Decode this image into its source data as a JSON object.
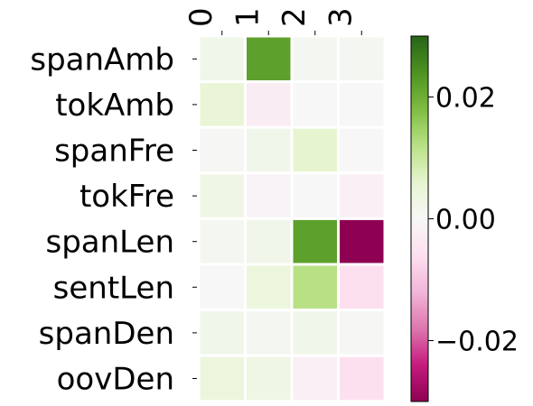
{
  "chart_data": {
    "type": "heatmap",
    "title": "",
    "xlabel": "",
    "ylabel": "",
    "x_categories": [
      "0",
      "1",
      "2",
      "3"
    ],
    "y_categories": [
      "spanAmb",
      "tokAmb",
      "spanFre",
      "tokFre",
      "spanLen",
      "sentLen",
      "spanDen",
      "oovDen"
    ],
    "values": [
      [
        0.002,
        0.022,
        0.001,
        0.001
      ],
      [
        0.005,
        -0.003,
        0.0,
        0.0
      ],
      [
        0.0005,
        0.002,
        0.006,
        0.0
      ],
      [
        0.003,
        -0.001,
        0.0,
        -0.002
      ],
      [
        0.001,
        0.002,
        0.022,
        -0.03
      ],
      [
        0.0,
        0.004,
        0.012,
        -0.006
      ],
      [
        0.002,
        0.001,
        0.002,
        0.0005
      ],
      [
        0.004,
        0.003,
        -0.002,
        -0.006
      ]
    ],
    "colormap": "PiYG",
    "vmin": -0.03,
    "vmax": 0.03,
    "colorbar_ticks": [
      "0.02",
      "0.00",
      "−0.02"
    ],
    "colorbar_tick_values": [
      0.02,
      0.0,
      -0.02
    ],
    "x_tick_position": "top",
    "grid": false
  }
}
